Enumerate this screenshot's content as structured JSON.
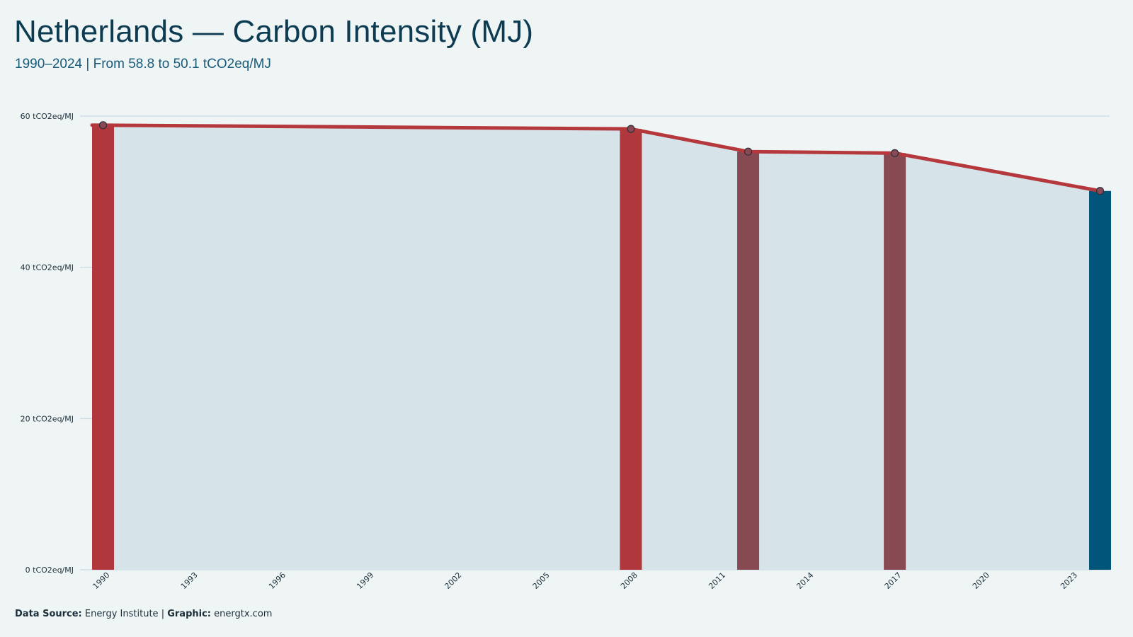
{
  "chart_data": {
    "type": "bar",
    "title": "Netherlands — Carbon Intensity (MJ)",
    "subtitle": "1990–2024 | From 58.8 to 50.1 tCO2eq/MJ",
    "unit": "tCO2eq/MJ",
    "ylim": [
      0,
      60
    ],
    "y_ticks": [
      "0 tCO2eq/MJ",
      "20 tCO2eq/MJ",
      "40 tCO2eq/MJ",
      "60 tCO2eq/MJ"
    ],
    "y_tick_values": [
      0,
      20,
      40,
      60
    ],
    "xlim": [
      1990,
      2024
    ],
    "x_ticks": [
      "1990",
      "1993",
      "1996",
      "1999",
      "2002",
      "2005",
      "2008",
      "2011",
      "2014",
      "2017",
      "2020",
      "2023"
    ],
    "x_tick_values": [
      1990,
      1993,
      1996,
      1999,
      2002,
      2005,
      2008,
      2011,
      2014,
      2017,
      2020,
      2023
    ],
    "grid": true,
    "series": [
      {
        "x": [
          1990,
          2008,
          2012,
          2017,
          2024
        ],
        "values": [
          58.8,
          58.3,
          55.3,
          55.1,
          50.1
        ],
        "bar_colors": [
          "#b0383d",
          "#b0383d",
          "#874a53",
          "#874a53",
          "#02557a"
        ]
      }
    ],
    "line_color": "#b5383d",
    "area_color": "#d6e3e8"
  },
  "footer": {
    "source_label": "Data Source:",
    "source_value": "Energy Institute",
    "separator": "|",
    "graphic_label": "Graphic:",
    "graphic_value": "energtx.com"
  }
}
